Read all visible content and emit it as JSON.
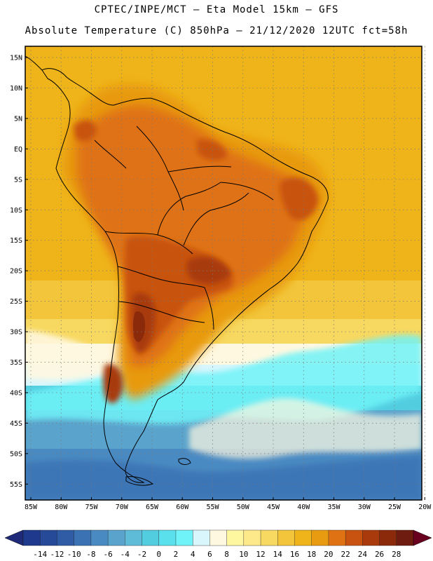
{
  "header": {
    "line1": "CPTEC/INPE/MCT –  Eta Model 15km – GFS",
    "line2": "Absolute Temperature (C) 850hPa – 21/12/2020 12UTC fct=58h"
  },
  "map": {
    "lat_labels": [
      "15N",
      "10N",
      "5N",
      "EQ",
      "5S",
      "10S",
      "15S",
      "20S",
      "25S",
      "30S",
      "35S",
      "40S",
      "45S",
      "50S",
      "55S"
    ],
    "lat_values": [
      15,
      10,
      5,
      0,
      -5,
      -10,
      -15,
      -20,
      -25,
      -30,
      -35,
      -40,
      -45,
      -50,
      -55
    ],
    "lon_labels": [
      "85W",
      "80W",
      "75W",
      "70W",
      "65W",
      "60W",
      "55W",
      "50W",
      "45W",
      "40W",
      "35W",
      "30W",
      "25W",
      "20W"
    ],
    "lon_values": [
      -85,
      -80,
      -75,
      -70,
      -65,
      -60,
      -55,
      -50,
      -45,
      -40,
      -35,
      -30,
      -25,
      -20
    ]
  },
  "colorbar": {
    "labels": [
      "-14",
      "-12",
      "-10",
      "-8",
      "-6",
      "-4",
      "-2",
      "0",
      "2",
      "4",
      "6",
      "8",
      "10",
      "12",
      "14",
      "16",
      "18",
      "20",
      "22",
      "24",
      "26",
      "28"
    ],
    "colors": [
      "#1f3a8c",
      "#274a98",
      "#2f5ca4",
      "#3a72b4",
      "#4a8ac2",
      "#5aa3cc",
      "#5fbcd8",
      "#52cde0",
      "#5ae0ec",
      "#6ff3f8",
      "#d8f6fc",
      "#fff8e0",
      "#fff7a0",
      "#fde88a",
      "#f7d860",
      "#f2c53a",
      "#efb41a",
      "#e89a10",
      "#df7212",
      "#c85210",
      "#a83a0c",
      "#8a2a0a",
      "#6e1c10"
    ],
    "low_arrow_color": "#1f2a78",
    "high_arrow_color": "#6a0020"
  }
}
